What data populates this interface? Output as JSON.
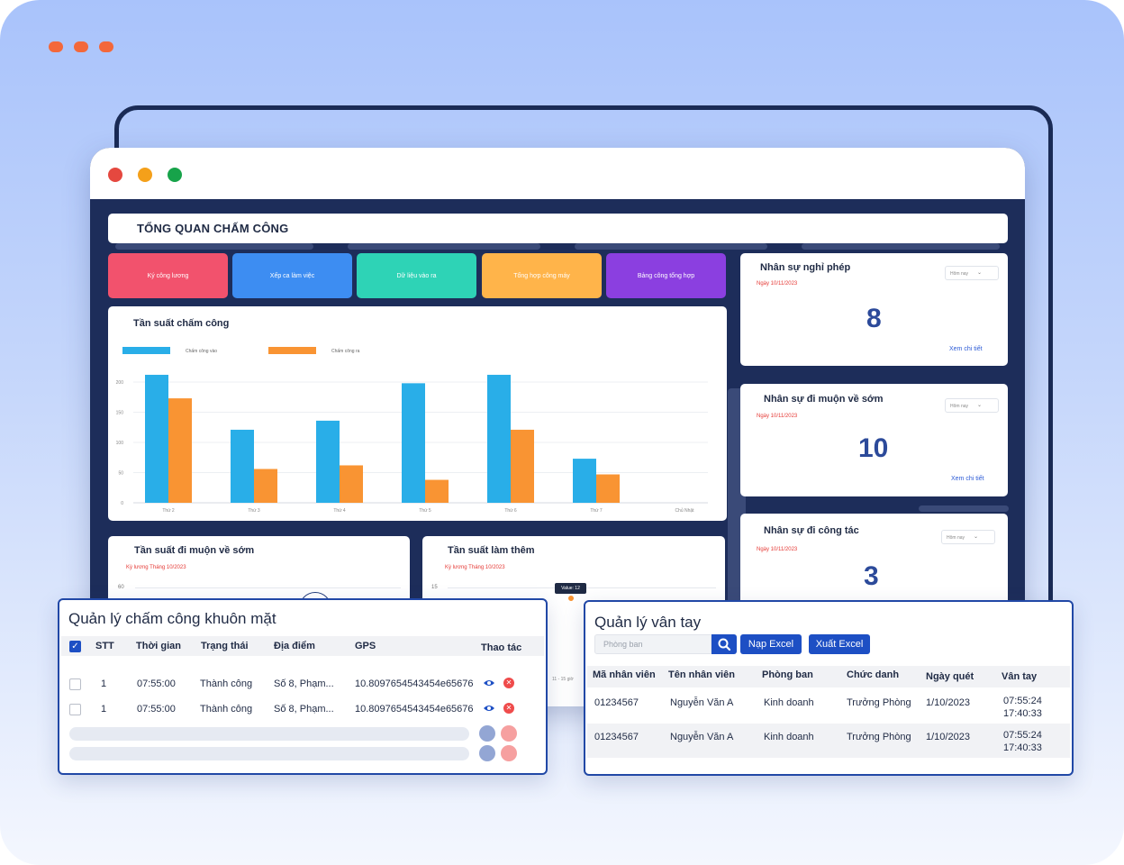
{
  "dashboard": {
    "title": "TỔNG QUAN CHẤM CÔNG",
    "tiles": [
      {
        "label": "Ký công lương",
        "color": "#f2526d"
      },
      {
        "label": "Xếp ca làm việc",
        "color": "#3d8df2"
      },
      {
        "label": "Dữ liệu vào ra",
        "color": "#2ed3b6"
      },
      {
        "label": "Tổng hợp công máy",
        "color": "#ffb44a"
      },
      {
        "label": "Bảng công tổng hợp",
        "color": "#8b3fe0"
      }
    ],
    "stat_cards": [
      {
        "title": "Nhân sự nghỉ phép",
        "date": "Ngày 10/11/2023",
        "filter": "Hôm nay",
        "value": "8",
        "link": "Xem chi tiết"
      },
      {
        "title": "Nhân sự đi muộn về sớm",
        "date": "Ngày 10/11/2023",
        "filter": "Hôm nay",
        "value": "10",
        "link": "Xem chi tiết"
      },
      {
        "title": "Nhân sự đi công tác",
        "date": "Ngày 10/11/2023",
        "filter": "Hôm nay",
        "value": "3"
      }
    ],
    "late_card": {
      "title": "Tần suất đi muộn về sớm",
      "sub": "Kỳ lương Tháng 10/2023",
      "tick": "60"
    },
    "overtime_card": {
      "title": "Tần suất làm thêm",
      "sub": "Kỳ lương Tháng 10/2023",
      "tick": "15",
      "tooltip": "Value: 12",
      "xlabel": "11 - 15 giờ"
    }
  },
  "chart_data": {
    "type": "bar",
    "title": "Tần suất chấm công",
    "categories": [
      "Thứ 2",
      "Thứ 3",
      "Thứ 4",
      "Thứ 5",
      "Thứ 6",
      "Thứ 7",
      "Chủ Nhật"
    ],
    "series": [
      {
        "name": "Chấm công vào",
        "color": "#29aee8",
        "values": [
          212,
          121,
          136,
          198,
          212,
          73,
          0
        ]
      },
      {
        "name": "Chấm công ra",
        "color": "#f99433",
        "values": [
          173,
          56,
          62,
          38,
          121,
          47,
          0
        ]
      }
    ],
    "yticks": [
      "200",
      "150",
      "100",
      "50",
      "0"
    ],
    "ylim": [
      0,
      200
    ],
    "grid": true,
    "legend": "top-left"
  },
  "face_panel": {
    "title": "Quản lý chấm công khuôn mặt",
    "columns": [
      "STT",
      "Thời gian",
      "Trạng thái",
      "Địa điểm",
      "GPS",
      "Thao tác"
    ],
    "rows": [
      {
        "stt": "1",
        "time": "07:55:00",
        "status": "Thành công",
        "place": "Số 8, Phạm...",
        "gps": "10.8097654543454e65676"
      },
      {
        "stt": "1",
        "time": "07:55:00",
        "status": "Thành công",
        "place": "Số 8, Phạm...",
        "gps": "10.8097654543454e65676"
      }
    ]
  },
  "finger_panel": {
    "title": "Quản lý vân tay",
    "search_placeholder": "Phòng ban",
    "import_label": "Nạp Excel",
    "export_label": "Xuất Excel",
    "columns": [
      "Mã nhân viên",
      "Tên nhân viên",
      "Phòng ban",
      "Chức danh",
      "Ngày quét",
      "Vân tay"
    ],
    "rows": [
      {
        "id": "01234567",
        "name": "Nguyễn Văn A",
        "dept": "Kinh doanh",
        "role": "Trưởng Phòng",
        "date": "1/10/2023",
        "t1": "07:55:24",
        "t2": "17:40:33"
      },
      {
        "id": "01234567",
        "name": "Nguyễn Văn A",
        "dept": "Kinh doanh",
        "role": "Trưởng Phòng",
        "date": "1/10/2023",
        "t1": "07:55:24",
        "t2": "17:40:33"
      }
    ]
  }
}
